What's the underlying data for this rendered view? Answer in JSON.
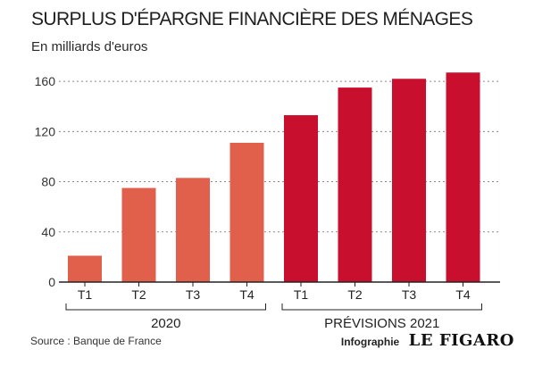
{
  "chart_data": {
    "type": "bar",
    "title": "SURPLUS D'ÉPARGNE FINANCIÈRE DES MÉNAGES",
    "subtitle": "En milliards d'euros",
    "categories": [
      "T1",
      "T2",
      "T3",
      "T4",
      "T1",
      "T2",
      "T3",
      "T4"
    ],
    "values": [
      21,
      75,
      83,
      111,
      133,
      155,
      162,
      167
    ],
    "groups": [
      {
        "label": "2020",
        "categories": [
          0,
          1,
          2,
          3
        ],
        "color": "#e0604b"
      },
      {
        "label": "PRÉVISIONS 2021",
        "categories": [
          4,
          5,
          6,
          7
        ],
        "color": "#c8102e"
      }
    ],
    "ylim": [
      0,
      175
    ],
    "yticks": [
      0,
      40,
      80,
      120,
      160
    ],
    "grid": true
  },
  "footer": {
    "source": "Source : Banque de France",
    "credit_label": "Infographie",
    "logo": "LE FIGARO"
  }
}
